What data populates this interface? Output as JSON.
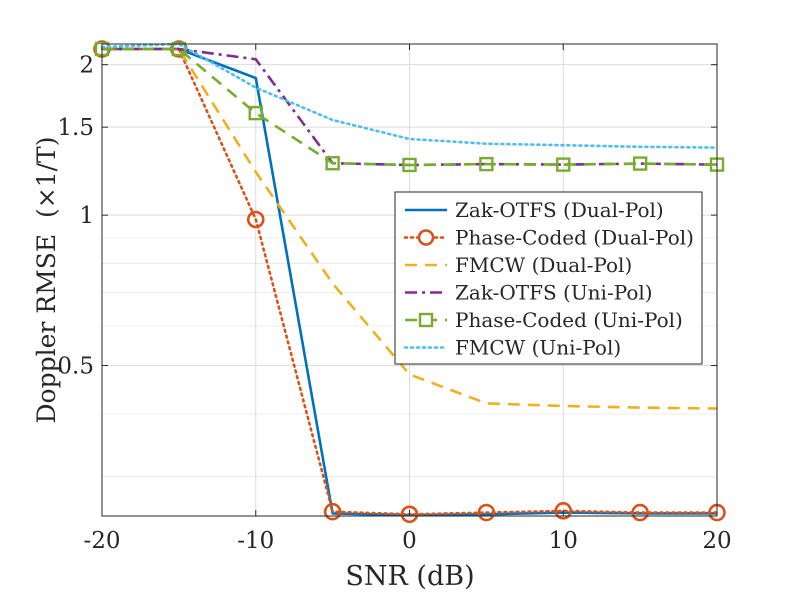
{
  "chart_data": {
    "type": "line",
    "xlabel": "SNR (dB)",
    "ylabel": "Doppler RMSE",
    "ylabel_unit": "(×1/T)",
    "y_scale": "log",
    "xlim": [
      -20,
      20
    ],
    "ylim": [
      0.25,
      2.2
    ],
    "grid": true,
    "x_ticks": [
      -20,
      -10,
      0,
      10,
      20
    ],
    "x_tick_labels": [
      "-20",
      "-10",
      "0",
      "10",
      "20"
    ],
    "y_ticks": [
      0.5,
      1,
      1.5,
      2
    ],
    "y_tick_labels": [
      "0.5",
      "1",
      "1.5",
      "2"
    ],
    "x": [
      -20,
      -15,
      -10,
      -5,
      0,
      5,
      10,
      15,
      20
    ],
    "legend_position": "right",
    "series": [
      {
        "name": "Zak-OTFS (Dual-Pol)",
        "color": "#0072BD",
        "dash": "solid",
        "marker": "none",
        "values": [
          2.15,
          2.15,
          1.88,
          0.253,
          0.251,
          0.252,
          0.254,
          0.253,
          0.253
        ]
      },
      {
        "name": "Phase-Coded (Dual-Pol)",
        "color": "#D95319",
        "dash": "dotted",
        "marker": "circle",
        "values": [
          2.15,
          2.15,
          0.98,
          0.255,
          0.252,
          0.254,
          0.256,
          0.254,
          0.254
        ]
      },
      {
        "name": "FMCW (Dual-Pol)",
        "color": "#EDB120",
        "dash": "dashed",
        "marker": "none",
        "values": [
          2.15,
          2.15,
          1.22,
          0.73,
          0.48,
          0.42,
          0.415,
          0.412,
          0.41
        ]
      },
      {
        "name": "Zak-OTFS (Uni-Pol)",
        "color": "#7E2F8E",
        "dash": "dashdot",
        "marker": "none",
        "values": [
          2.15,
          2.15,
          2.05,
          1.27,
          1.26,
          1.265,
          1.262,
          1.268,
          1.262
        ]
      },
      {
        "name": "Phase-Coded (Uni-Pol)",
        "color": "#77AC30",
        "dash": "dashed",
        "marker": "square",
        "values": [
          2.15,
          2.15,
          1.6,
          1.27,
          1.26,
          1.265,
          1.262,
          1.268,
          1.262
        ]
      },
      {
        "name": "FMCW (Uni-Pol)",
        "color": "#4DBEEE",
        "dash": "dotted",
        "marker": "none",
        "values": [
          2.17,
          2.2,
          1.8,
          1.55,
          1.42,
          1.39,
          1.38,
          1.37,
          1.365
        ]
      }
    ]
  }
}
